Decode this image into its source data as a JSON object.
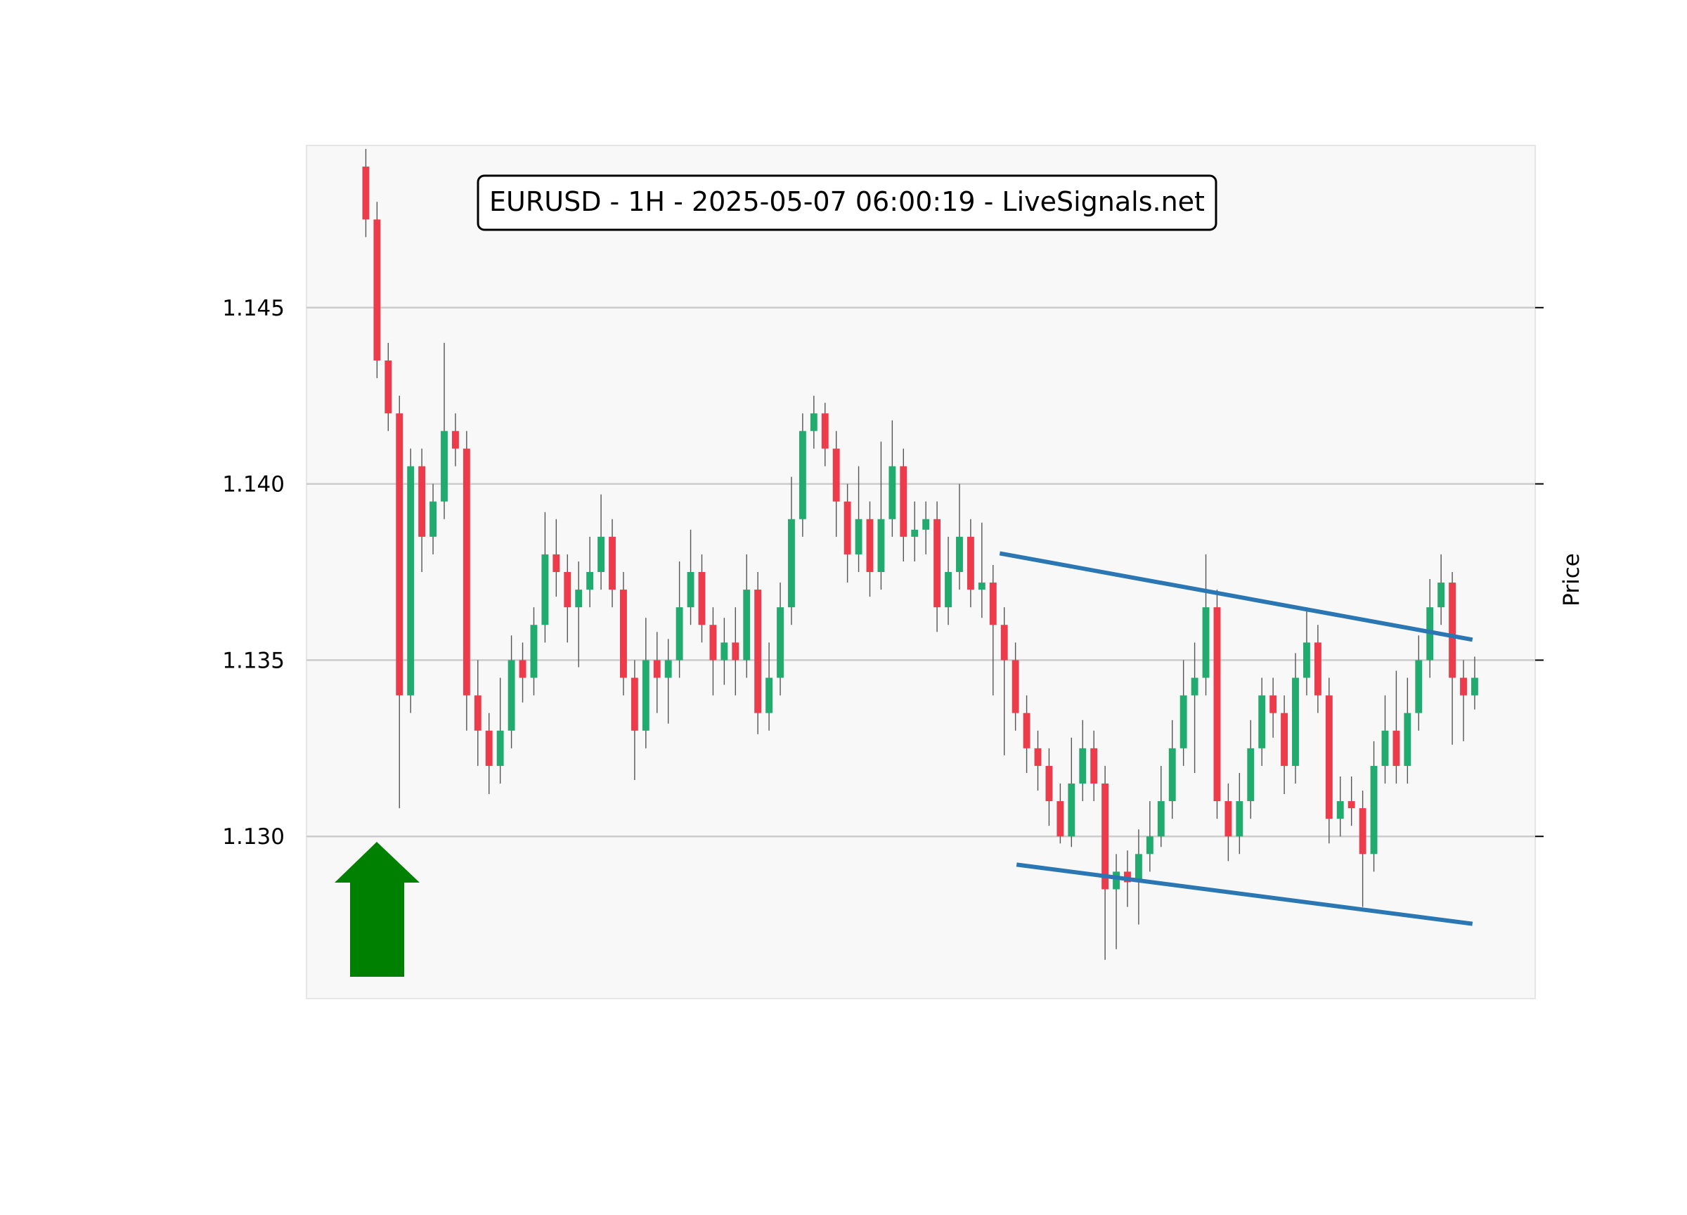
{
  "chart_data": {
    "type": "candlestick",
    "title": "EURUSD - 1H - 2025-05-07 06:00:19 - LiveSignals.net",
    "ylabel": "Price",
    "ylim": [
      1.1254,
      1.1496
    ],
    "yticks": [
      {
        "value": 1.13,
        "label": "1.130"
      },
      1.135,
      {
        "value": 1.14,
        "label": "1.140"
      },
      1.145
    ],
    "xlim": [
      -5.3,
      104.4
    ],
    "grid": true,
    "up_color": "#22ab6e",
    "down_color": "#ec3b4a",
    "wick_color": "#555555",
    "open": [
      1.149,
      1.1475,
      1.1435,
      1.142,
      1.134,
      1.1405,
      1.1385,
      1.1395,
      1.1415,
      1.141,
      1.134,
      1.133,
      1.132,
      1.133,
      1.135,
      1.1345,
      1.136,
      1.138,
      1.1375,
      1.1365,
      1.137,
      1.1375,
      1.1385,
      1.137,
      1.1345,
      1.133,
      1.135,
      1.1345,
      1.135,
      1.1365,
      1.1375,
      1.136,
      1.135,
      1.1355,
      1.135,
      1.137,
      1.1335,
      1.1345,
      1.1365,
      1.139,
      1.1415,
      1.142,
      1.141,
      1.1395,
      1.138,
      1.139,
      1.1375,
      1.139,
      1.1405,
      1.1385,
      1.1387,
      1.139,
      1.1365,
      1.1375,
      1.1385,
      1.137,
      1.1372,
      1.136,
      1.135,
      1.1335,
      1.1325,
      1.132,
      1.131,
      1.13,
      1.1315,
      1.1325,
      1.1315,
      1.1285,
      1.129,
      1.1287,
      1.1295,
      1.13,
      1.131,
      1.1325,
      1.134,
      1.1345,
      1.1365,
      1.131,
      1.13,
      1.131,
      1.1325,
      1.134,
      1.1335,
      1.132,
      1.1345,
      1.1355,
      1.134,
      1.1305,
      1.131,
      1.1308,
      1.1295,
      1.132,
      1.133,
      1.132,
      1.1335,
      1.135,
      1.1365,
      1.1372,
      1.1345,
      1.134
    ],
    "high": [
      1.1495,
      1.148,
      1.144,
      1.1425,
      1.141,
      1.141,
      1.14,
      1.144,
      1.142,
      1.1415,
      1.135,
      1.1335,
      1.1345,
      1.1357,
      1.1355,
      1.1365,
      1.1392,
      1.139,
      1.138,
      1.1378,
      1.1385,
      1.1397,
      1.139,
      1.1375,
      1.135,
      1.1362,
      1.1358,
      1.1356,
      1.1378,
      1.1387,
      1.138,
      1.1365,
      1.1362,
      1.1365,
      1.138,
      1.1375,
      1.1355,
      1.1372,
      1.1402,
      1.142,
      1.1425,
      1.1423,
      1.1415,
      1.14,
      1.1405,
      1.1395,
      1.1412,
      1.1418,
      1.141,
      1.1395,
      1.1395,
      1.1395,
      1.1385,
      1.14,
      1.139,
      1.1389,
      1.1377,
      1.1365,
      1.1355,
      1.134,
      1.133,
      1.1325,
      1.1315,
      1.1328,
      1.1333,
      1.133,
      1.132,
      1.1295,
      1.1296,
      1.1302,
      1.131,
      1.132,
      1.1333,
      1.135,
      1.1355,
      1.138,
      1.137,
      1.1315,
      1.1318,
      1.1333,
      1.1345,
      1.1345,
      1.134,
      1.1352,
      1.1365,
      1.136,
      1.1345,
      1.1317,
      1.1317,
      1.1313,
      1.1327,
      1.134,
      1.1347,
      1.1345,
      1.1357,
      1.1373,
      1.138,
      1.1375,
      1.135,
      1.1351
    ],
    "low": [
      1.147,
      1.143,
      1.1415,
      1.1308,
      1.1335,
      1.1375,
      1.138,
      1.139,
      1.1405,
      1.133,
      1.132,
      1.1312,
      1.1315,
      1.1325,
      1.1338,
      1.134,
      1.1355,
      1.1368,
      1.1355,
      1.1348,
      1.1365,
      1.137,
      1.1365,
      1.134,
      1.1316,
      1.1325,
      1.1335,
      1.1332,
      1.1345,
      1.136,
      1.1355,
      1.134,
      1.1343,
      1.134,
      1.1345,
      1.1329,
      1.133,
      1.134,
      1.136,
      1.1385,
      1.141,
      1.1405,
      1.1385,
      1.1372,
      1.1375,
      1.1368,
      1.137,
      1.1385,
      1.1378,
      1.1378,
      1.138,
      1.1358,
      1.136,
      1.137,
      1.1365,
      1.1362,
      1.134,
      1.1323,
      1.133,
      1.1318,
      1.1313,
      1.1303,
      1.1298,
      1.1297,
      1.131,
      1.131,
      1.1265,
      1.1268,
      1.128,
      1.1275,
      1.129,
      1.1297,
      1.1305,
      1.132,
      1.1318,
      1.134,
      1.1305,
      1.1293,
      1.1295,
      1.1305,
      1.132,
      1.1328,
      1.1312,
      1.1315,
      1.134,
      1.1335,
      1.1298,
      1.13,
      1.1303,
      1.128,
      1.129,
      1.1315,
      1.1315,
      1.1315,
      1.133,
      1.1345,
      1.136,
      1.1326,
      1.1327,
      1.1336
    ],
    "close": [
      1.1475,
      1.1435,
      1.142,
      1.134,
      1.1405,
      1.1385,
      1.1395,
      1.1415,
      1.141,
      1.134,
      1.133,
      1.132,
      1.133,
      1.135,
      1.1345,
      1.136,
      1.138,
      1.1375,
      1.1365,
      1.137,
      1.1375,
      1.1385,
      1.137,
      1.1345,
      1.133,
      1.135,
      1.1345,
      1.135,
      1.1365,
      1.1375,
      1.136,
      1.135,
      1.1355,
      1.135,
      1.137,
      1.1335,
      1.1345,
      1.1365,
      1.139,
      1.1415,
      1.142,
      1.141,
      1.1395,
      1.138,
      1.139,
      1.1375,
      1.139,
      1.1405,
      1.1385,
      1.1387,
      1.139,
      1.1365,
      1.1375,
      1.1385,
      1.137,
      1.1372,
      1.136,
      1.135,
      1.1335,
      1.1325,
      1.132,
      1.131,
      1.13,
      1.1315,
      1.1325,
      1.1315,
      1.1285,
      1.129,
      1.1287,
      1.1295,
      1.13,
      1.131,
      1.1325,
      1.134,
      1.1345,
      1.1365,
      1.131,
      1.13,
      1.131,
      1.1325,
      1.134,
      1.1335,
      1.132,
      1.1345,
      1.1355,
      1.134,
      1.1305,
      1.131,
      1.1308,
      1.1295,
      1.132,
      1.133,
      1.132,
      1.1335,
      1.135,
      1.1365,
      1.1372,
      1.1345,
      1.134,
      1.1345
    ],
    "lines": [
      {
        "x": [
          56.6,
          98.8
        ],
        "y": [
          1.13803,
          1.13558
        ],
        "color": "#2a77b4"
      },
      {
        "x": [
          58.1,
          98.8
        ],
        "y": [
          1.1292,
          1.12752
        ],
        "color": "#2a77b4"
      }
    ]
  }
}
